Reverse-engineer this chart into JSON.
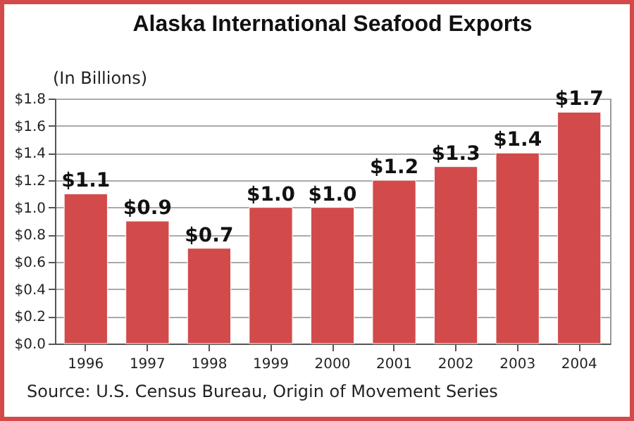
{
  "chart_data": {
    "type": "bar",
    "title": "Alaska International Seafood Exports",
    "ylabel": "(In Billions)",
    "annotations": [
      "Source: U.S. Census Bureau, Origin of Movement Series"
    ],
    "categories": [
      "1996",
      "1997",
      "1998",
      "1999",
      "2000",
      "2001",
      "2002",
      "2003",
      "2004"
    ],
    "values": [
      1.1,
      0.9,
      0.7,
      1.0,
      1.0,
      1.2,
      1.3,
      1.4,
      1.7
    ],
    "color": "#d24a4a",
    "value_labels": [
      "$1.1",
      "$0.9",
      "$0.7",
      "$1.0",
      "$1.0",
      "$1.2",
      "$1.3",
      "$1.4",
      "$1.7"
    ],
    "ylim": [
      0,
      1.8
    ],
    "yticks": [
      {
        "value": 0,
        "label": "$0.0"
      },
      {
        "value": 0.2,
        "label": "$0.2"
      },
      {
        "value": 0.4,
        "label": "$0.4"
      },
      {
        "value": 0.6,
        "label": "$0.6"
      },
      {
        "value": 0.8,
        "label": "$0.8"
      },
      {
        "value": 1.0,
        "label": "$1.0"
      },
      {
        "value": 1.2,
        "label": "$1.2"
      },
      {
        "value": 1.4,
        "label": "$1.4"
      },
      {
        "value": 1.6,
        "label": "$1.6"
      },
      {
        "value": 1.8,
        "label": "$1.8"
      }
    ],
    "grid": true
  }
}
